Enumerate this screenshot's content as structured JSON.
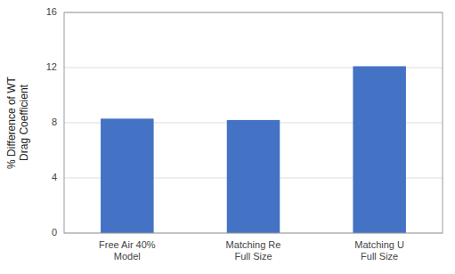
{
  "chart_data": {
    "type": "bar",
    "categories": [
      "Free Air 40%\nModel",
      "Matching Re\nFull Size",
      "Matching U\nFull Size"
    ],
    "values": [
      8.3,
      8.2,
      12.1
    ],
    "color": "#4472C4",
    "ylabel": "% Difference of WT\nDrag Coefficient",
    "ylim": [
      0,
      16
    ],
    "yticks": [
      0,
      4,
      8,
      12,
      16
    ],
    "grid": true
  }
}
